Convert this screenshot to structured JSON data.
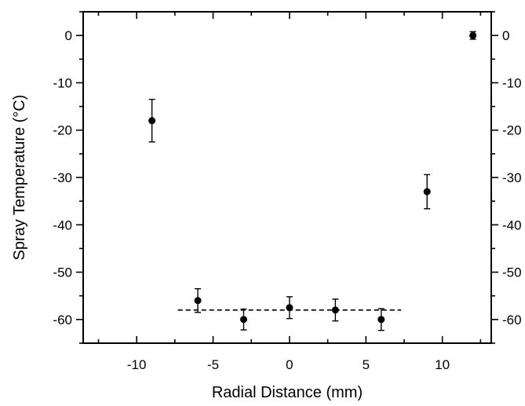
{
  "chart_data": {
    "type": "scatter",
    "title": "",
    "xlabel": "Radial Distance (mm)",
    "ylabel": "Spray Temperature (°C)",
    "xlim": [
      -13.5,
      13.2
    ],
    "ylim": [
      -65,
      5
    ],
    "x_ticks": [
      -10,
      -5,
      0,
      5,
      10
    ],
    "y_ticks": [
      0,
      -10,
      -20,
      -30,
      -40,
      -50,
      -60
    ],
    "grid": false,
    "legend": "none",
    "error_bars": true,
    "points": [
      {
        "x": -9,
        "y": -18,
        "err": 4.5
      },
      {
        "x": -6,
        "y": -56,
        "err": 2.5
      },
      {
        "x": -3,
        "y": -60,
        "err": 2.2
      },
      {
        "x": 0,
        "y": -57.5,
        "err": 2.3
      },
      {
        "x": 3,
        "y": -58,
        "err": 2.3
      },
      {
        "x": 6,
        "y": -60,
        "err": 2.3
      },
      {
        "x": 9,
        "y": -33,
        "err": 3.6
      },
      {
        "x": 12,
        "y": 0,
        "err": 0.8
      }
    ],
    "reference_line": {
      "style": "dashed",
      "x": [
        -7.3,
        7.3
      ],
      "y": -58
    }
  }
}
